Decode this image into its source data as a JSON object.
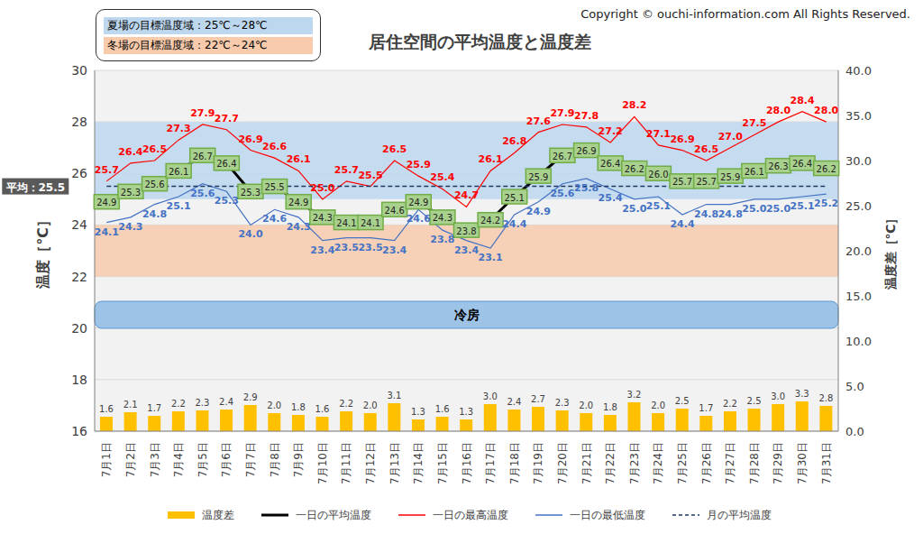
{
  "chart_data": {
    "type": "line",
    "title": "居住空間の平均温度と温度差",
    "copyright": "Copyright © ouchi-information.com All Rights Reserved.",
    "categories": [
      "7月1日",
      "7月2日",
      "7月3日",
      "7月4日",
      "7月5日",
      "7月6日",
      "7月7日",
      "7月8日",
      "7月9日",
      "7月10日",
      "7月11日",
      "7月12日",
      "7月13日",
      "7月14日",
      "7月15日",
      "7月16日",
      "7月17日",
      "7月18日",
      "7月19日",
      "7月20日",
      "7月21日",
      "7月22日",
      "7月23日",
      "7月24日",
      "7月25日",
      "7月26日",
      "7月27日",
      "7月28日",
      "7月29日",
      "7月30日",
      "7月31日"
    ],
    "y_label": "温度［℃］",
    "y2_label": "温度差［℃］",
    "ylim": [
      16,
      30
    ],
    "yticks": [
      16,
      18,
      20,
      22,
      24,
      26,
      28,
      30
    ],
    "y2lim": [
      0,
      40
    ],
    "y2ticks": [
      {
        "value": 0,
        "label": "0.0"
      },
      {
        "value": 5,
        "label": "5.0"
      },
      {
        "value": 10,
        "label": "10.0"
      },
      {
        "value": 15,
        "label": "15.0"
      },
      {
        "value": 20,
        "label": "20.0"
      },
      {
        "value": 25,
        "label": "25.0"
      },
      {
        "value": 30,
        "label": "30.0"
      },
      {
        "value": 35,
        "label": "35.0"
      },
      {
        "value": 40,
        "label": "40.0"
      }
    ],
    "grid": true,
    "legend": "bottom",
    "series": [
      {
        "name": "温度差",
        "type": "bar",
        "axis": "y2",
        "color": "#ffc000",
        "data_labels": true,
        "values": [
          1.6,
          2.1,
          1.7,
          2.2,
          2.3,
          2.4,
          2.9,
          2.0,
          1.8,
          1.6,
          2.2,
          2.0,
          3.1,
          1.3,
          1.6,
          1.3,
          3.0,
          2.4,
          2.7,
          2.3,
          2.0,
          1.8,
          3.2,
          2.0,
          2.5,
          1.7,
          2.2,
          2.5,
          3.0,
          3.3,
          2.8
        ],
        "value_labels": [
          "1.6",
          "2.1",
          "1.7",
          "2.2",
          "2.3",
          "2.4",
          "2.9",
          "2.0",
          "1.8",
          "1.6",
          "2.2",
          "2.0",
          "3.1",
          "1.3",
          "1.6",
          "1.3",
          "3.0",
          "2.4",
          "2.7",
          "2.3",
          "2.0",
          "1.8",
          "3.2",
          "2.0",
          "2.5",
          "1.7",
          "2.2",
          "2.5",
          "3.0",
          "3.3",
          "2.8"
        ]
      },
      {
        "name": "一日の平均温度",
        "type": "line",
        "color": "#000000",
        "data_labels": true,
        "values": [
          24.9,
          25.3,
          25.6,
          26.1,
          26.7,
          26.4,
          25.3,
          25.5,
          24.9,
          24.3,
          24.1,
          24.1,
          24.6,
          24.9,
          24.3,
          23.8,
          24.2,
          25.1,
          25.9,
          26.7,
          26.9,
          26.4,
          26.2,
          26.0,
          25.7,
          25.7,
          25.9,
          26.1,
          26.3,
          26.4,
          26.2
        ],
        "value_labels": [
          "24.9",
          "25.3",
          "25.6",
          "26.1",
          "26.7",
          "26.4",
          "25.3",
          "25.5",
          "24.9",
          "24.3",
          "24.1",
          "24.1",
          "24.6",
          "24.9",
          "24.3",
          "23.8",
          "24.2",
          "25.1",
          "25.9",
          "26.7",
          "26.9",
          "26.4",
          "26.2",
          "26.0",
          "25.7",
          "25.7",
          "25.9",
          "26.1",
          "26.3",
          "26.4",
          "26.2"
        ]
      },
      {
        "name": "一日の最高温度",
        "type": "line",
        "color": "#ff0000",
        "data_labels": true,
        "values": [
          25.7,
          26.4,
          26.5,
          27.3,
          27.9,
          27.7,
          26.9,
          26.6,
          26.1,
          25.0,
          25.7,
          25.5,
          26.5,
          25.9,
          25.4,
          24.7,
          26.1,
          26.8,
          27.6,
          27.9,
          27.8,
          27.2,
          28.2,
          27.1,
          26.9,
          26.5,
          27.0,
          27.5,
          28.0,
          28.4,
          28.0
        ],
        "value_labels": [
          "25.7",
          "26.4",
          "26.5",
          "27.3",
          "27.9",
          "27.7",
          "26.9",
          "26.6",
          "26.1",
          "25.0",
          "25.7",
          "25.5",
          "26.5",
          "25.9",
          "25.4",
          "24.7",
          "26.1",
          "26.8",
          "27.6",
          "27.9",
          "27.8",
          "27.2",
          "28.2",
          "27.1",
          "26.9",
          "26.5",
          "27.0",
          "27.5",
          "28.0",
          "28.4",
          "28.0"
        ]
      },
      {
        "name": "一日の最低温度",
        "type": "line",
        "color": "#4472c4",
        "data_labels": true,
        "values": [
          24.1,
          24.3,
          24.8,
          25.1,
          25.6,
          25.3,
          24.0,
          24.6,
          24.3,
          23.4,
          23.5,
          23.5,
          23.4,
          24.6,
          23.8,
          23.4,
          23.1,
          24.4,
          24.9,
          25.6,
          25.8,
          25.4,
          25.0,
          25.1,
          24.4,
          24.8,
          24.8,
          25.0,
          25.0,
          25.1,
          25.2
        ],
        "value_labels": [
          "24.1",
          "24.3",
          "24.8",
          "25.1",
          "25.6",
          "25.3",
          "24.0",
          "24.6",
          "24.3",
          "23.4",
          "23.5",
          "23.5",
          "23.4",
          "24.6",
          "23.8",
          "23.4",
          "23.1",
          "24.4",
          "24.9",
          "25.6",
          "25.8",
          "25.4",
          "25.0",
          "25.1",
          "24.4",
          "24.8",
          "24.8",
          "25.0",
          "25.0",
          "25.1",
          "25.2"
        ]
      },
      {
        "name": "月の平均温度",
        "type": "line",
        "color": "#1f3864",
        "line_style": "dashed",
        "data_labels": false,
        "values": [
          25.5,
          25.5,
          25.5,
          25.5,
          25.5,
          25.5,
          25.5,
          25.5,
          25.5,
          25.5,
          25.5,
          25.5,
          25.5,
          25.5,
          25.5,
          25.5,
          25.5,
          25.5,
          25.5,
          25.5,
          25.5,
          25.5,
          25.5,
          25.5,
          25.5,
          25.5,
          25.5,
          25.5,
          25.5,
          25.5,
          25.5
        ]
      }
    ],
    "annotations": [
      {
        "text": "平均：25.5",
        "value": 25.5
      }
    ],
    "bands": [
      {
        "label": "夏場の目標温度域：25℃～28℃",
        "from": 25,
        "to": 28,
        "color": "#bdd7ee"
      },
      {
        "label": "冬場の目標温度域：22℃～24℃",
        "from": 22,
        "to": 24,
        "color": "#f8cbad"
      }
    ],
    "periods": [
      {
        "label": "冷房",
        "from": "7月1日",
        "to": "7月31日",
        "color": "#9dc3e6"
      }
    ]
  }
}
